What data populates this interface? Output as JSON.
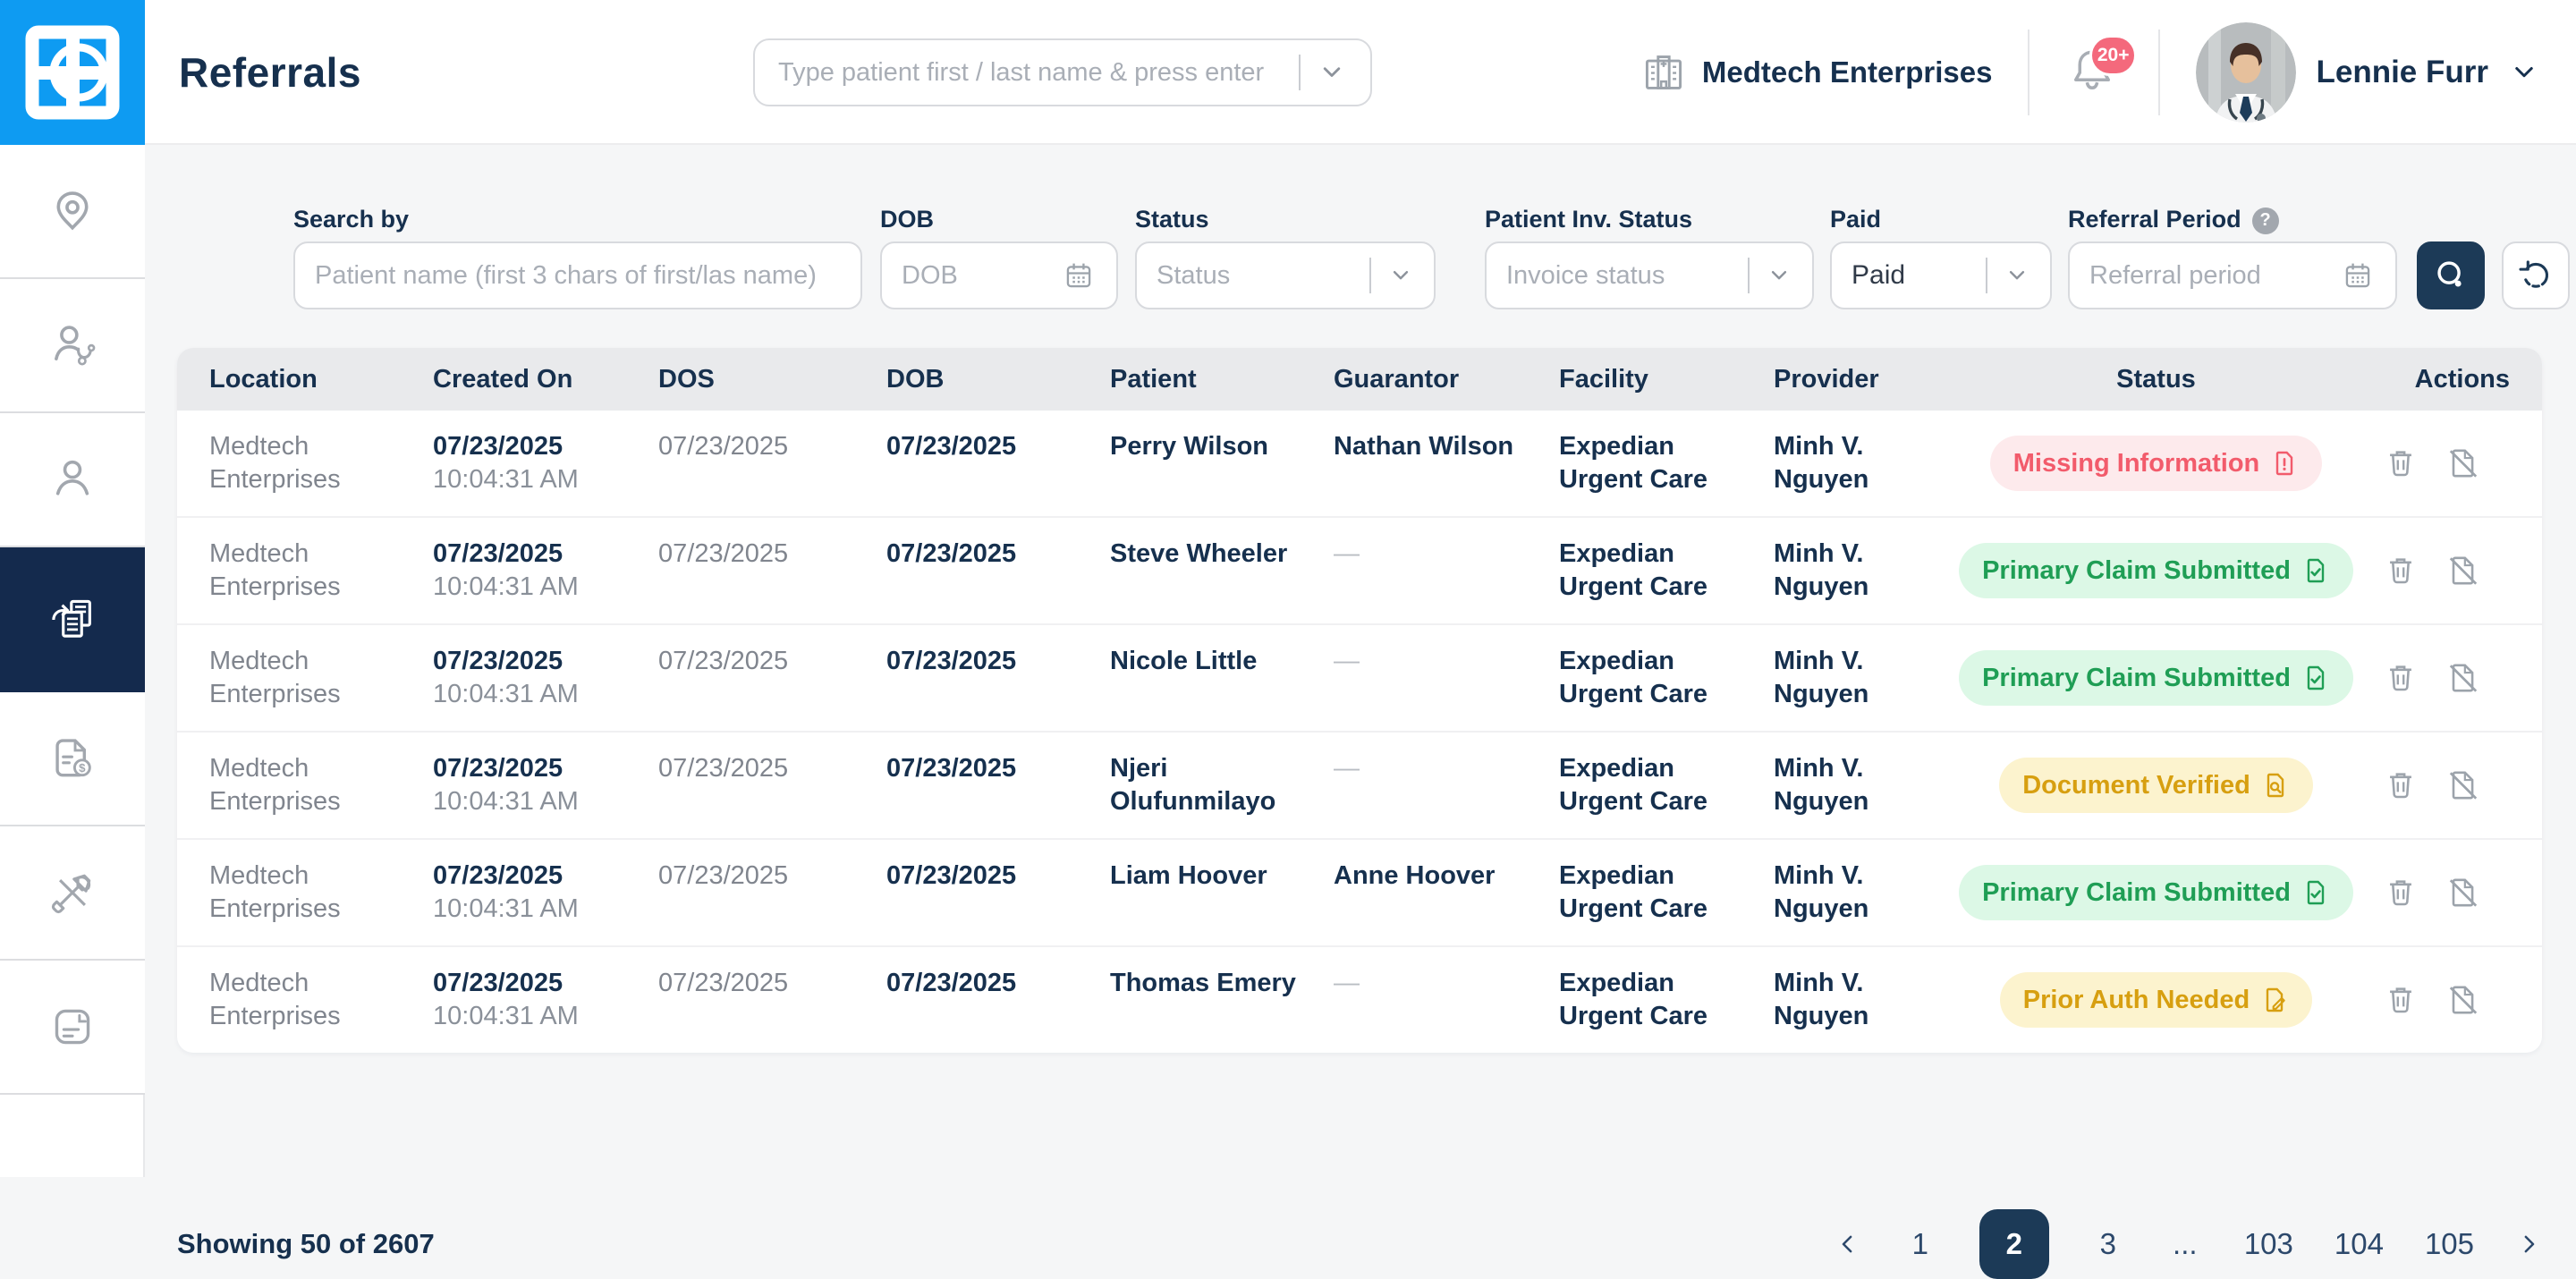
{
  "app": {
    "title": "Referrals"
  },
  "header": {
    "search_placeholder": "Type patient first / last name & press enter",
    "org_name": "Medtech Enterprises",
    "notification_count": "20+",
    "user_name": "Lennie Furr"
  },
  "sidebar": {
    "items": [
      {
        "icon": "location-pin-icon",
        "active": false
      },
      {
        "icon": "doctor-icon",
        "active": false
      },
      {
        "icon": "patient-icon",
        "active": false
      },
      {
        "icon": "referrals-icon",
        "active": true
      },
      {
        "icon": "invoice-icon",
        "active": false
      },
      {
        "icon": "tools-icon",
        "active": false
      },
      {
        "icon": "report-icon",
        "active": false
      }
    ]
  },
  "filters": {
    "search_by": {
      "label": "Search by",
      "placeholder": "Patient name (first 3 chars of first/las name)"
    },
    "dob": {
      "label": "DOB",
      "placeholder": "DOB"
    },
    "status": {
      "label": "Status",
      "placeholder": "Status"
    },
    "patient_inv_status": {
      "label": "Patient Inv. Status",
      "placeholder": "Invoice status"
    },
    "paid": {
      "label": "Paid",
      "value": "Paid"
    },
    "referral_period": {
      "label": "Referral Period",
      "placeholder": "Referral period"
    }
  },
  "table": {
    "columns": [
      "Location",
      "Created On",
      "DOS",
      "DOB",
      "Patient",
      "Guarantor",
      "Facility",
      "Provider",
      "Status",
      "Actions"
    ],
    "rows": [
      {
        "location": "Medtech Enterprises",
        "created_date": "07/23/2025",
        "created_time": "10:04:31 AM",
        "dos": "07/23/2025",
        "dob": "07/23/2025",
        "patient": "Perry Wilson",
        "guarantor": "Nathan Wilson",
        "facility": "Expedian Urgent Care",
        "provider": "Minh V. Nguyen",
        "status": "Missing Information",
        "status_type": "danger",
        "status_icon": "doc-alert"
      },
      {
        "location": "Medtech Enterprises",
        "created_date": "07/23/2025",
        "created_time": "10:04:31 AM",
        "dos": "07/23/2025",
        "dob": "07/23/2025",
        "patient": "Steve Wheeler",
        "guarantor": "—",
        "facility": "Expedian Urgent Care",
        "provider": "Minh V. Nguyen",
        "status": "Primary Claim Submitted",
        "status_type": "success",
        "status_icon": "doc-check"
      },
      {
        "location": "Medtech Enterprises",
        "created_date": "07/23/2025",
        "created_time": "10:04:31 AM",
        "dos": "07/23/2025",
        "dob": "07/23/2025",
        "patient": "Nicole Little",
        "guarantor": "—",
        "facility": "Expedian Urgent Care",
        "provider": "Minh V. Nguyen",
        "status": "Primary Claim Submitted",
        "status_type": "success",
        "status_icon": "doc-check"
      },
      {
        "location": "Medtech Enterprises",
        "created_date": "07/23/2025",
        "created_time": "10:04:31 AM",
        "dos": "07/23/2025",
        "dob": "07/23/2025",
        "patient": "Njeri Olufunmilayo",
        "guarantor": "—",
        "facility": "Expedian Urgent Care",
        "provider": "Minh V. Nguyen",
        "status": "Document Verified",
        "status_type": "warning",
        "status_icon": "doc-search"
      },
      {
        "location": "Medtech Enterprises",
        "created_date": "07/23/2025",
        "created_time": "10:04:31 AM",
        "dos": "07/23/2025",
        "dob": "07/23/2025",
        "patient": "Liam Hoover",
        "guarantor": "Anne Hoover",
        "facility": "Expedian Urgent Care",
        "provider": "Minh V. Nguyen",
        "status": "Primary Claim Submitted",
        "status_type": "success",
        "status_icon": "doc-check"
      },
      {
        "location": "Medtech Enterprises",
        "created_date": "07/23/2025",
        "created_time": "10:04:31 AM",
        "dos": "07/23/2025",
        "dob": "07/23/2025",
        "patient": "Thomas Emery",
        "guarantor": "—",
        "facility": "Expedian Urgent Care",
        "provider": "Minh V. Nguyen",
        "status": "Prior Auth Needed",
        "status_type": "warning",
        "status_icon": "doc-edit"
      }
    ]
  },
  "pagination": {
    "summary": "Showing 50 of 2607",
    "pages": [
      "1",
      "2",
      "3",
      "...",
      "103",
      "104",
      "105"
    ],
    "active": "2"
  },
  "colors": {
    "navy": "#16304e",
    "button_navy": "#1c3a57",
    "logo_blue": "#0e9bf2",
    "badge_pink": "#f4697c",
    "danger_text": "#f25b6b",
    "danger_bg": "#fdeaec",
    "success_text": "#1f9e55",
    "success_bg": "#dcf8e6",
    "warning_text": "#d79f10",
    "warning_bg": "#fcf3ce"
  }
}
